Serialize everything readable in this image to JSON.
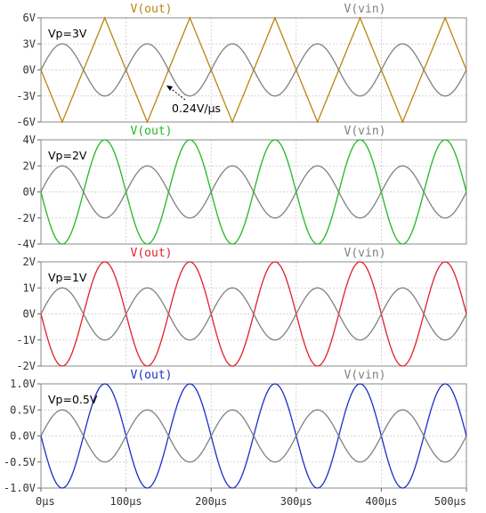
{
  "chart_data": [
    {
      "type": "line",
      "annotation": "Vp=3V",
      "note": "0.24V/µs",
      "ylim": [
        -6,
        6
      ],
      "yticks": [
        "6V",
        "3V",
        "0V",
        "-3V",
        "-6V"
      ],
      "series": [
        {
          "name": "V(out)",
          "color": "#b8860b",
          "shape": "triangle",
          "amplitude": 6,
          "period_us": 100,
          "phase": "inverted"
        },
        {
          "name": "V(vin)",
          "color": "#808080",
          "shape": "sine",
          "amplitude": 3,
          "period_us": 100,
          "phase": "normal"
        }
      ]
    },
    {
      "type": "line",
      "annotation": "Vp=2V",
      "ylim": [
        -4,
        4
      ],
      "yticks": [
        "4V",
        "2V",
        "0V",
        "-2V",
        "-4V"
      ],
      "series": [
        {
          "name": "V(out)",
          "color": "#22b822",
          "shape": "sine",
          "amplitude": 4,
          "period_us": 100,
          "phase": "inverted"
        },
        {
          "name": "V(vin)",
          "color": "#808080",
          "shape": "sine",
          "amplitude": 2,
          "period_us": 100,
          "phase": "normal"
        }
      ]
    },
    {
      "type": "line",
      "annotation": "Vp=1V",
      "ylim": [
        -2,
        2
      ],
      "yticks": [
        "2V",
        "1V",
        "0V",
        "-1V",
        "-2V"
      ],
      "series": [
        {
          "name": "V(out)",
          "color": "#e0202a",
          "shape": "sine",
          "amplitude": 2,
          "period_us": 100,
          "phase": "inverted"
        },
        {
          "name": "V(vin)",
          "color": "#808080",
          "shape": "sine",
          "amplitude": 1,
          "period_us": 100,
          "phase": "normal"
        }
      ]
    },
    {
      "type": "line",
      "annotation": "Vp=0.5V",
      "ylim": [
        -1,
        1
      ],
      "yticks": [
        "1.0V",
        "0.5V",
        "0.0V",
        "-0.5V",
        "-1.0V"
      ],
      "series": [
        {
          "name": "V(out)",
          "color": "#1a2fc9",
          "shape": "sine",
          "amplitude": 1,
          "period_us": 100,
          "phase": "inverted"
        },
        {
          "name": "V(vin)",
          "color": "#808080",
          "shape": "sine",
          "amplitude": 0.5,
          "period_us": 100,
          "phase": "normal"
        }
      ]
    }
  ],
  "x_axis": {
    "xlim": [
      0,
      500
    ],
    "ticks": [
      0,
      100,
      200,
      300,
      400,
      500
    ],
    "tick_labels": [
      "0µs",
      "100µs",
      "200µs",
      "300µs",
      "400µs",
      "500µs"
    ]
  }
}
